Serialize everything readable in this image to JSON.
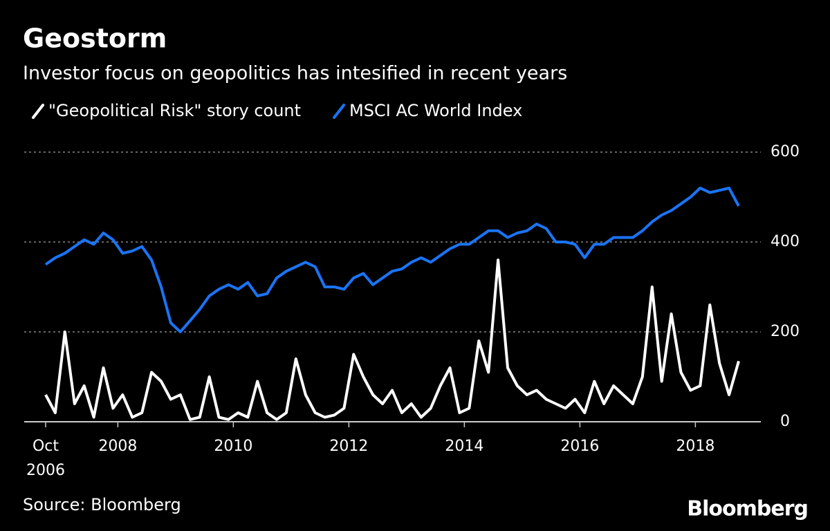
{
  "chart_data": {
    "type": "line",
    "title": "Geostorm",
    "subtitle": "Investor focus on geopolitics has intesified in recent years",
    "source": "Source: Bloomberg",
    "brand": "Bloomberg",
    "x": [
      "2006-10",
      "2006-12",
      "2007-02",
      "2007-04",
      "2007-06",
      "2007-08",
      "2007-10",
      "2007-12",
      "2008-02",
      "2008-04",
      "2008-06",
      "2008-08",
      "2008-10",
      "2008-12",
      "2009-02",
      "2009-04",
      "2009-06",
      "2009-08",
      "2009-10",
      "2009-12",
      "2010-02",
      "2010-04",
      "2010-06",
      "2010-08",
      "2010-10",
      "2010-12",
      "2011-02",
      "2011-04",
      "2011-06",
      "2011-08",
      "2011-10",
      "2011-12",
      "2012-02",
      "2012-04",
      "2012-06",
      "2012-08",
      "2012-10",
      "2012-12",
      "2013-02",
      "2013-04",
      "2013-06",
      "2013-08",
      "2013-10",
      "2013-12",
      "2014-02",
      "2014-04",
      "2014-06",
      "2014-08",
      "2014-10",
      "2014-12",
      "2015-02",
      "2015-04",
      "2015-06",
      "2015-08",
      "2015-10",
      "2015-12",
      "2016-02",
      "2016-04",
      "2016-06",
      "2016-08",
      "2016-10",
      "2016-12",
      "2017-02",
      "2017-04",
      "2017-06",
      "2017-08",
      "2017-10",
      "2017-12",
      "2018-02",
      "2018-04",
      "2018-06",
      "2018-08",
      "2018-10"
    ],
    "series": [
      {
        "name": "\"Geopolitical Risk\" story count",
        "color": "#ffffff",
        "values": [
          60,
          20,
          200,
          40,
          80,
          10,
          120,
          30,
          60,
          10,
          20,
          110,
          90,
          50,
          60,
          5,
          10,
          100,
          10,
          5,
          20,
          10,
          90,
          20,
          5,
          20,
          140,
          60,
          20,
          10,
          15,
          30,
          150,
          100,
          60,
          40,
          70,
          20,
          40,
          10,
          30,
          80,
          120,
          20,
          30,
          180,
          110,
          360,
          120,
          80,
          60,
          70,
          50,
          40,
          30,
          50,
          20,
          90,
          40,
          80,
          60,
          40,
          100,
          300,
          90,
          240,
          110,
          70,
          80,
          260,
          130,
          60,
          135
        ]
      },
      {
        "name": "MSCI AC World Index",
        "color": "#1a74f5",
        "values": [
          350,
          365,
          375,
          390,
          405,
          395,
          420,
          405,
          375,
          380,
          390,
          360,
          300,
          220,
          200,
          225,
          250,
          280,
          295,
          305,
          295,
          310,
          280,
          285,
          320,
          335,
          345,
          355,
          345,
          300,
          300,
          295,
          320,
          330,
          305,
          320,
          335,
          340,
          355,
          365,
          355,
          370,
          385,
          395,
          395,
          410,
          425,
          425,
          410,
          420,
          425,
          440,
          430,
          400,
          400,
          395,
          365,
          395,
          395,
          410,
          410,
          410,
          425,
          445,
          460,
          470,
          485,
          500,
          520,
          510,
          515,
          520,
          480
        ]
      }
    ],
    "xlim": [
      "2006-10",
      "2018-10"
    ],
    "xticks": [
      {
        "value": "2006-10",
        "label": "Oct 2006"
      },
      {
        "value": "2008-01",
        "label": "2008"
      },
      {
        "value": "2010-01",
        "label": "2010"
      },
      {
        "value": "2012-01",
        "label": "2012"
      },
      {
        "value": "2014-01",
        "label": "2014"
      },
      {
        "value": "2016-01",
        "label": "2016"
      },
      {
        "value": "2018-01",
        "label": "2018"
      }
    ],
    "ylim": [
      0,
      600
    ],
    "yticks": [
      0,
      200,
      400,
      600
    ],
    "grid": true
  }
}
